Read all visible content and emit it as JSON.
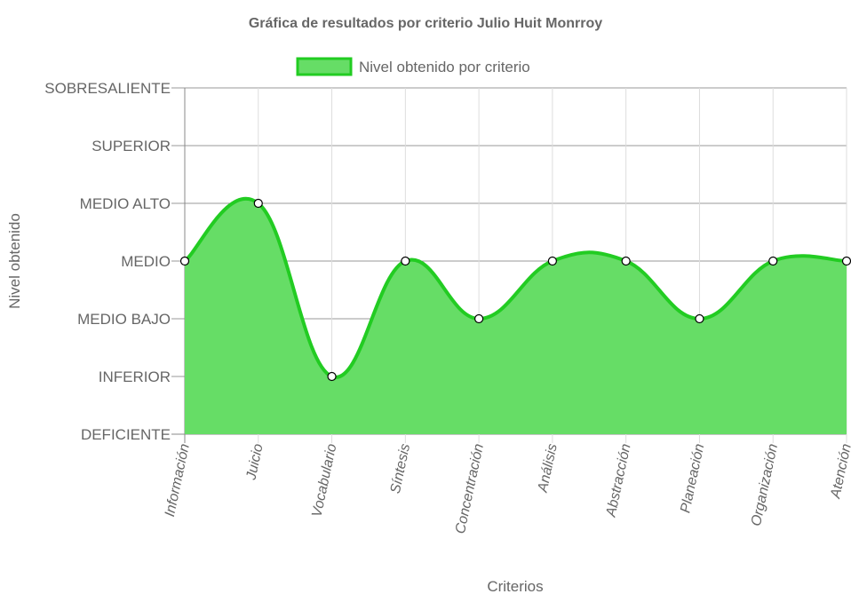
{
  "chart_data": {
    "type": "area",
    "title": "Gráfica de resultados por criterio Julio Huit Monrroy",
    "xlabel": "Criterios",
    "ylabel": "Nivel obtenido",
    "y_levels": [
      "DEFICIENTE",
      "INFERIOR",
      "MEDIO BAJO",
      "MEDIO",
      "MEDIO ALTO",
      "SUPERIOR",
      "SOBRESALIENTE"
    ],
    "categories": [
      "Información",
      "Juicio",
      "Vocabulario",
      "Síntesis",
      "Concentración",
      "Análisis",
      "Abstracción",
      "Planeación",
      "Organización",
      "Atención"
    ],
    "series": [
      {
        "name": "Nivel obtenido por criterio",
        "values": [
          "MEDIO",
          "MEDIO ALTO",
          "INFERIOR",
          "MEDIO",
          "MEDIO BAJO",
          "MEDIO",
          "MEDIO",
          "MEDIO BAJO",
          "MEDIO",
          "MEDIO"
        ],
        "line_color": "#22cc22",
        "fill_color": "#66dd66"
      }
    ],
    "grid": true,
    "legend_position": "top"
  }
}
